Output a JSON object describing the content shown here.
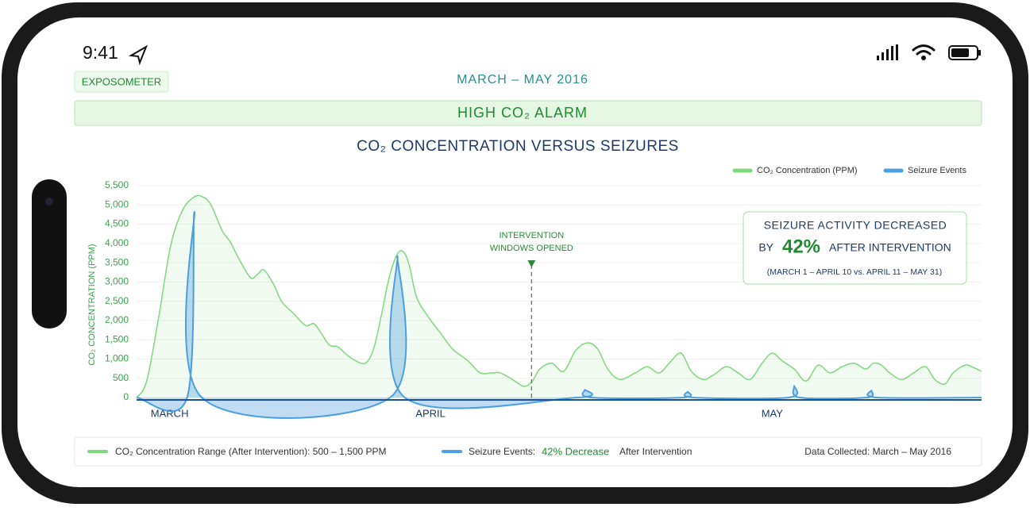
{
  "status_bar": {
    "time": "9:41"
  },
  "header": {
    "badge": "EXPOSOMETER",
    "period": "MARCH – MAY 2016"
  },
  "alarm": "HIGH CO₂ ALARM",
  "chart_data": {
    "type": "line",
    "title": "CO₂ CONCENTRATION VERSUS SEIZURES",
    "y_label": "CO₂ CONCENTRATION (PPM)",
    "xlim": [
      0,
      92
    ],
    "xticks": [
      {
        "value": 3.6,
        "label": "MARCH"
      },
      {
        "value": 32,
        "label": "APRIL"
      },
      {
        "value": 69.2,
        "label": "MAY"
      }
    ],
    "ylim": [
      0,
      5500
    ],
    "yticks": [
      0,
      {
        "value": 500,
        "label": "500"
      },
      {
        "value": 1000,
        "label": "1,000"
      },
      {
        "value": 1500,
        "label": "1,500"
      },
      {
        "value": 2000,
        "label": "2,000"
      },
      {
        "value": 2500,
        "label": "2,500"
      },
      {
        "value": 3000,
        "label": "3,000"
      },
      {
        "value": 3500,
        "label": "3,500"
      },
      {
        "value": 4000,
        "label": "4,000"
      },
      {
        "value": 4500,
        "label": "4,500"
      },
      {
        "value": 5000,
        "label": "5,000"
      },
      {
        "value": 5500,
        "label": "5,500"
      }
    ],
    "grid": true,
    "legend": "top-right",
    "series": [
      {
        "name": "CO₂ Concentration (PPM)",
        "color": "#7dd97a",
        "x": [
          0,
          1.1,
          2.4,
          3.7,
          5,
          6.3,
          7.2,
          8.1,
          9.3,
          10.2,
          11.1,
          12.4,
          13.2,
          13.9,
          15,
          15.8,
          17.1,
          18.4,
          19.3,
          20.1,
          21,
          21.9,
          22.7,
          23.6,
          24.9,
          25.8,
          26.6,
          27.5,
          28.4,
          29.1,
          29.7,
          30.5,
          31.8,
          33.1,
          34.4,
          36.1,
          37.4,
          38.7,
          39.6,
          40.9,
          42.2,
          43.1,
          43.9,
          45.2,
          46.5,
          47.8,
          49.1,
          50.2,
          51.3,
          52.6,
          54.3,
          55.6,
          56.9,
          58.2,
          59.3,
          60.4,
          61.7,
          62.9,
          64.2,
          65.5,
          66.8,
          68.1,
          69.2,
          70.3,
          71.6,
          72.9,
          74.2,
          75.5,
          76.8,
          78.1,
          79.4,
          80.2,
          81.1,
          82,
          83.3,
          84.6,
          85.9,
          86.9,
          88,
          88.9,
          90.2,
          91.1,
          92
        ],
        "values": [
          0,
          430,
          2080,
          3930,
          4860,
          5210,
          5210,
          5000,
          4340,
          4040,
          3620,
          3110,
          3210,
          3310,
          2900,
          2490,
          2180,
          1870,
          1920,
          1670,
          1360,
          1320,
          1150,
          990,
          890,
          1260,
          2080,
          3110,
          3730,
          3770,
          3420,
          2600,
          2080,
          1670,
          1260,
          950,
          640,
          640,
          640,
          470,
          290,
          430,
          740,
          890,
          680,
          1220,
          1420,
          1260,
          740,
          470,
          640,
          800,
          640,
          950,
          1150,
          680,
          470,
          600,
          800,
          640,
          470,
          890,
          1150,
          950,
          740,
          430,
          840,
          640,
          800,
          890,
          740,
          890,
          840,
          640,
          470,
          640,
          800,
          470,
          350,
          640,
          840,
          780,
          680
        ]
      },
      {
        "name": "Seizure Events",
        "color": "#4a9fe0",
        "x": [
          0,
          5.5,
          6.3,
          7.1,
          27.6,
          28.4,
          29.2,
          48,
          48.8,
          49.5,
          59.5,
          60,
          60.6,
          71,
          71.6,
          72.2,
          79.5,
          80,
          80.6,
          92
        ],
        "values": [
          0,
          0,
          4820,
          0,
          0,
          3670,
          0,
          0,
          200,
          0,
          0,
          150,
          0,
          0,
          300,
          0,
          0,
          180,
          0,
          0
        ]
      }
    ],
    "annotation": {
      "x": 43,
      "lines": [
        "INTERVENTION",
        "WINDOWS OPENED"
      ]
    },
    "callout": {
      "line1": "SEIZURE ACTIVITY DECREASED",
      "by": "BY",
      "pct": "42%",
      "after": "AFTER INTERVENTION",
      "range": "(MARCH 1 – APRIL 10 vs. APRIL 11 – MAY 31)"
    }
  },
  "footer": {
    "range": "CO₂ Concentration Range (After Intervention): 500 – 1,500 PPM",
    "events": "Seizure Events:",
    "decrease": "42% Decrease",
    "after": "After Intervention",
    "collected": "Data Collected: March – May 2016"
  }
}
